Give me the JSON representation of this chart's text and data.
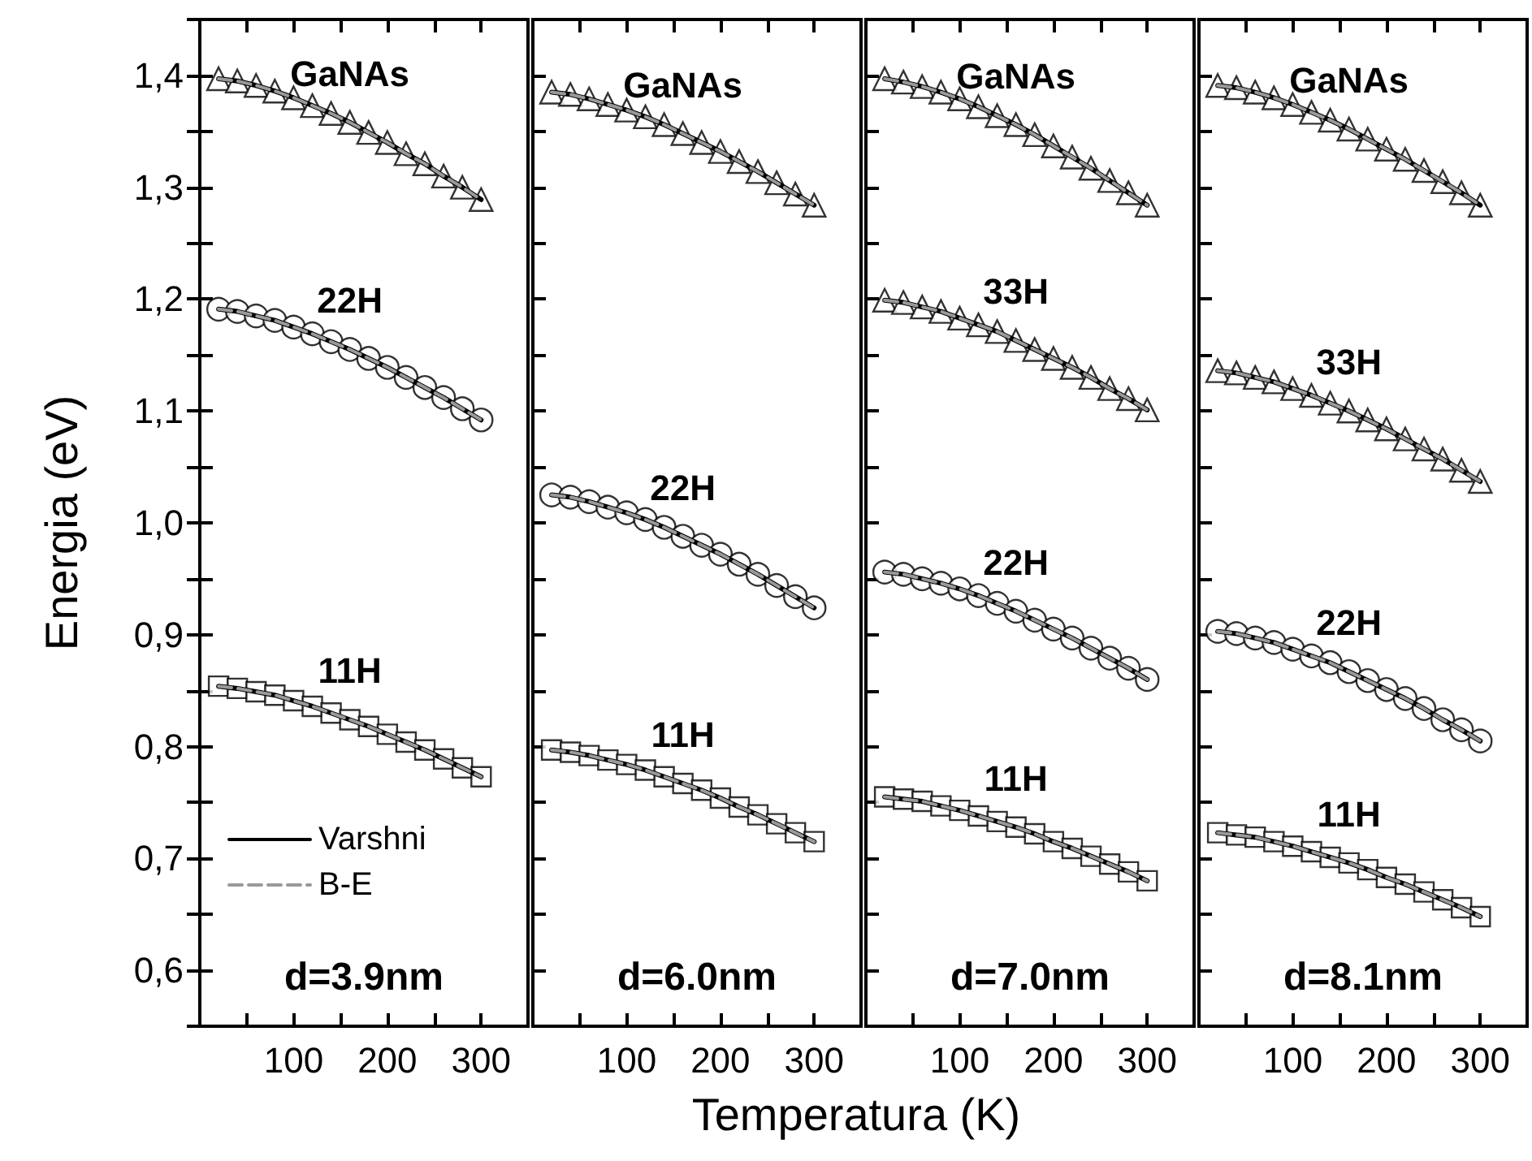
{
  "chart_data": [
    {
      "type": "scatter",
      "title": "d=3.9nm",
      "xlabel": "Temperatura (K)",
      "ylabel": "Energia (eV)",
      "legend": "bottom left",
      "xlim": [
        0,
        350
      ],
      "ylim": [
        0.55,
        1.45
      ],
      "xticks": [
        100,
        200,
        300
      ],
      "yticks": [
        {
          "value": 0.6,
          "label": "0,6"
        },
        {
          "value": 0.7,
          "label": "0,7"
        },
        {
          "value": 0.8,
          "label": "0,8"
        },
        {
          "value": 0.9,
          "label": "0,9"
        },
        {
          "value": 1.0,
          "label": "1,0"
        },
        {
          "value": 1.1,
          "label": "1,1"
        },
        {
          "value": 1.2,
          "label": "1,2"
        },
        {
          "value": 1.3,
          "label": "1,3"
        },
        {
          "value": 1.4,
          "label": "1,4"
        }
      ],
      "x": [
        20,
        40,
        60,
        80,
        100,
        120,
        140,
        160,
        180,
        200,
        220,
        240,
        260,
        280,
        300
      ],
      "series": [
        {
          "name": "GaNAs",
          "marker": "triangle",
          "color": "#000000",
          "values": [
            1.397,
            1.395,
            1.391,
            1.386,
            1.38,
            1.373,
            1.366,
            1.358,
            1.349,
            1.34,
            1.33,
            1.321,
            1.31,
            1.3,
            1.289
          ]
        },
        {
          "name": "22H",
          "marker": "circle",
          "color": "#000000",
          "values": [
            1.191,
            1.189,
            1.185,
            1.181,
            1.175,
            1.169,
            1.162,
            1.155,
            1.147,
            1.139,
            1.13,
            1.121,
            1.112,
            1.102,
            1.092
          ]
        },
        {
          "name": "11H",
          "marker": "square",
          "color": "#000000",
          "values": [
            0.854,
            0.852,
            0.849,
            0.846,
            0.841,
            0.836,
            0.83,
            0.824,
            0.818,
            0.811,
            0.804,
            0.797,
            0.789,
            0.781,
            0.773
          ]
        },
        {
          "type": "line",
          "name": "Varshni",
          "color": "#000000",
          "line_style": "solid",
          "marker": "none",
          "values": [
            1.397,
            1.395,
            1.391,
            1.386,
            1.38,
            1.373,
            1.366,
            1.358,
            1.349,
            1.34,
            1.33,
            1.321,
            1.31,
            1.3,
            1.289
          ]
        },
        {
          "type": "line",
          "name": "B-E",
          "color": "#999999",
          "line_style": "dashed",
          "marker": "none",
          "values": [
            1.397,
            1.395,
            1.391,
            1.386,
            1.38,
            1.373,
            1.366,
            1.358,
            1.349,
            1.34,
            1.33,
            1.321,
            1.31,
            1.3,
            1.289
          ]
        },
        {
          "type": "line",
          "color": "#000000",
          "line_style": "solid",
          "marker": "none",
          "values": [
            1.191,
            1.189,
            1.185,
            1.181,
            1.175,
            1.169,
            1.162,
            1.155,
            1.147,
            1.139,
            1.13,
            1.121,
            1.112,
            1.102,
            1.092
          ]
        },
        {
          "type": "line",
          "color": "#999999",
          "line_style": "dashed",
          "marker": "none",
          "values": [
            1.191,
            1.189,
            1.185,
            1.181,
            1.175,
            1.169,
            1.162,
            1.155,
            1.147,
            1.139,
            1.13,
            1.121,
            1.112,
            1.102,
            1.092
          ]
        },
        {
          "type": "line",
          "color": "#000000",
          "line_style": "solid",
          "marker": "none",
          "values": [
            0.854,
            0.852,
            0.849,
            0.846,
            0.841,
            0.836,
            0.83,
            0.824,
            0.818,
            0.811,
            0.804,
            0.797,
            0.789,
            0.781,
            0.773
          ]
        },
        {
          "type": "line",
          "color": "#999999",
          "line_style": "dashed",
          "marker": "none",
          "values": [
            0.854,
            0.852,
            0.849,
            0.846,
            0.841,
            0.836,
            0.83,
            0.824,
            0.818,
            0.811,
            0.804,
            0.797,
            0.789,
            0.781,
            0.773
          ]
        }
      ]
    },
    {
      "type": "scatter",
      "title": "d=6.0nm",
      "tick_labels": "x",
      "xlim": [
        0,
        350
      ],
      "ylim": [
        0.55,
        1.45
      ],
      "xticks": [
        100,
        200,
        300
      ],
      "yticks": [
        {
          "value": 0.6,
          "label": null
        },
        {
          "value": 0.7,
          "label": null
        },
        {
          "value": 0.8,
          "label": null
        },
        {
          "value": 0.9,
          "label": null
        },
        {
          "value": 1.0,
          "label": null
        },
        {
          "value": 1.1,
          "label": null
        },
        {
          "value": 1.2,
          "label": null
        },
        {
          "value": 1.3,
          "label": null
        },
        {
          "value": 1.4,
          "label": null
        }
      ],
      "x": [
        20,
        40,
        60,
        80,
        100,
        120,
        140,
        160,
        180,
        200,
        220,
        240,
        260,
        280,
        300
      ],
      "series": [
        {
          "name": "GaNAs",
          "marker": "triangle",
          "color": "#000000",
          "values": [
            1.385,
            1.383,
            1.379,
            1.374,
            1.369,
            1.363,
            1.356,
            1.348,
            1.34,
            1.332,
            1.323,
            1.314,
            1.304,
            1.294,
            1.284
          ]
        },
        {
          "name": "22H",
          "marker": "circle",
          "color": "#000000",
          "values": [
            1.025,
            1.023,
            1.019,
            1.014,
            1.009,
            1.003,
            0.996,
            0.988,
            0.98,
            0.972,
            0.963,
            0.954,
            0.944,
            0.934,
            0.924
          ]
        },
        {
          "name": "11H",
          "marker": "square",
          "color": "#000000",
          "values": [
            0.797,
            0.795,
            0.792,
            0.788,
            0.784,
            0.779,
            0.773,
            0.767,
            0.761,
            0.754,
            0.746,
            0.739,
            0.731,
            0.723,
            0.715
          ]
        },
        {
          "type": "line",
          "color": "#000000",
          "line_style": "solid",
          "marker": "none",
          "values": [
            1.385,
            1.383,
            1.379,
            1.374,
            1.369,
            1.363,
            1.356,
            1.348,
            1.34,
            1.332,
            1.323,
            1.314,
            1.304,
            1.294,
            1.284
          ]
        },
        {
          "type": "line",
          "color": "#999999",
          "line_style": "dashed",
          "marker": "none",
          "values": [
            1.385,
            1.383,
            1.379,
            1.374,
            1.369,
            1.363,
            1.356,
            1.348,
            1.34,
            1.332,
            1.323,
            1.314,
            1.304,
            1.294,
            1.284
          ]
        },
        {
          "type": "line",
          "color": "#000000",
          "line_style": "solid",
          "marker": "none",
          "values": [
            1.025,
            1.023,
            1.019,
            1.014,
            1.009,
            1.003,
            0.996,
            0.988,
            0.98,
            0.972,
            0.963,
            0.954,
            0.944,
            0.934,
            0.924
          ]
        },
        {
          "type": "line",
          "color": "#999999",
          "line_style": "dashed",
          "marker": "none",
          "values": [
            1.025,
            1.023,
            1.019,
            1.014,
            1.009,
            1.003,
            0.996,
            0.988,
            0.98,
            0.972,
            0.963,
            0.954,
            0.944,
            0.934,
            0.924
          ]
        },
        {
          "type": "line",
          "color": "#000000",
          "line_style": "solid",
          "marker": "none",
          "values": [
            0.797,
            0.795,
            0.792,
            0.788,
            0.784,
            0.779,
            0.773,
            0.767,
            0.761,
            0.754,
            0.746,
            0.739,
            0.731,
            0.723,
            0.715
          ]
        },
        {
          "type": "line",
          "color": "#999999",
          "line_style": "dashed",
          "marker": "none",
          "values": [
            0.797,
            0.795,
            0.792,
            0.788,
            0.784,
            0.779,
            0.773,
            0.767,
            0.761,
            0.754,
            0.746,
            0.739,
            0.731,
            0.723,
            0.715
          ]
        }
      ]
    },
    {
      "type": "scatter",
      "title": "d=7.0nm",
      "tick_labels": "x",
      "xlim": [
        0,
        350
      ],
      "ylim": [
        0.55,
        1.45
      ],
      "xticks": [
        100,
        200,
        300
      ],
      "yticks": [
        {
          "value": 0.6,
          "label": null
        },
        {
          "value": 0.7,
          "label": null
        },
        {
          "value": 0.8,
          "label": null
        },
        {
          "value": 0.9,
          "label": null
        },
        {
          "value": 1.0,
          "label": null
        },
        {
          "value": 1.1,
          "label": null
        },
        {
          "value": 1.2,
          "label": null
        },
        {
          "value": 1.3,
          "label": null
        },
        {
          "value": 1.4,
          "label": null
        }
      ],
      "x": [
        20,
        40,
        60,
        80,
        100,
        120,
        140,
        160,
        180,
        200,
        220,
        240,
        260,
        280,
        300
      ],
      "series": [
        {
          "name": "GaNAs",
          "marker": "triangle",
          "color": "#000000",
          "values": [
            1.397,
            1.394,
            1.39,
            1.385,
            1.379,
            1.372,
            1.364,
            1.356,
            1.347,
            1.337,
            1.327,
            1.317,
            1.306,
            1.295,
            1.284
          ]
        },
        {
          "name": "33H",
          "marker": "triangle",
          "color": "#000000",
          "values": [
            1.199,
            1.197,
            1.193,
            1.189,
            1.183,
            1.177,
            1.171,
            1.163,
            1.155,
            1.147,
            1.139,
            1.13,
            1.12,
            1.111,
            1.101
          ]
        },
        {
          "name": "22H",
          "marker": "circle",
          "color": "#000000",
          "values": [
            0.956,
            0.954,
            0.95,
            0.946,
            0.941,
            0.935,
            0.928,
            0.921,
            0.913,
            0.905,
            0.897,
            0.888,
            0.879,
            0.87,
            0.86
          ]
        },
        {
          "name": "11H",
          "marker": "square",
          "color": "#000000",
          "values": [
            0.755,
            0.753,
            0.751,
            0.747,
            0.743,
            0.738,
            0.733,
            0.728,
            0.722,
            0.715,
            0.709,
            0.702,
            0.695,
            0.688,
            0.68
          ]
        },
        {
          "type": "line",
          "color": "#000000",
          "line_style": "solid",
          "marker": "none",
          "values": [
            1.397,
            1.394,
            1.39,
            1.385,
            1.379,
            1.372,
            1.364,
            1.356,
            1.347,
            1.337,
            1.327,
            1.317,
            1.306,
            1.295,
            1.284
          ]
        },
        {
          "type": "line",
          "color": "#999999",
          "line_style": "dashed",
          "marker": "none",
          "values": [
            1.397,
            1.394,
            1.39,
            1.385,
            1.379,
            1.372,
            1.364,
            1.356,
            1.347,
            1.337,
            1.327,
            1.317,
            1.306,
            1.295,
            1.284
          ]
        },
        {
          "type": "line",
          "color": "#000000",
          "line_style": "solid",
          "marker": "none",
          "values": [
            1.199,
            1.197,
            1.193,
            1.189,
            1.183,
            1.177,
            1.171,
            1.163,
            1.155,
            1.147,
            1.139,
            1.13,
            1.12,
            1.111,
            1.101
          ]
        },
        {
          "type": "line",
          "color": "#999999",
          "line_style": "dashed",
          "marker": "none",
          "values": [
            1.199,
            1.197,
            1.193,
            1.189,
            1.183,
            1.177,
            1.171,
            1.163,
            1.155,
            1.147,
            1.139,
            1.13,
            1.12,
            1.111,
            1.101
          ]
        },
        {
          "type": "line",
          "color": "#000000",
          "line_style": "solid",
          "marker": "none",
          "values": [
            0.956,
            0.954,
            0.95,
            0.946,
            0.941,
            0.935,
            0.928,
            0.921,
            0.913,
            0.905,
            0.897,
            0.888,
            0.879,
            0.87,
            0.86
          ]
        },
        {
          "type": "line",
          "color": "#999999",
          "line_style": "dashed",
          "marker": "none",
          "values": [
            0.956,
            0.954,
            0.95,
            0.946,
            0.941,
            0.935,
            0.928,
            0.921,
            0.913,
            0.905,
            0.897,
            0.888,
            0.879,
            0.87,
            0.86
          ]
        },
        {
          "type": "line",
          "color": "#000000",
          "line_style": "solid",
          "marker": "none",
          "values": [
            0.755,
            0.753,
            0.751,
            0.747,
            0.743,
            0.738,
            0.733,
            0.728,
            0.722,
            0.715,
            0.709,
            0.702,
            0.695,
            0.688,
            0.68
          ]
        },
        {
          "type": "line",
          "color": "#999999",
          "line_style": "dashed",
          "marker": "none",
          "values": [
            0.755,
            0.753,
            0.751,
            0.747,
            0.743,
            0.738,
            0.733,
            0.728,
            0.722,
            0.715,
            0.709,
            0.702,
            0.695,
            0.688,
            0.68
          ]
        }
      ]
    },
    {
      "type": "scatter",
      "title": "d=8.1nm",
      "tick_labels": "x",
      "xlim": [
        0,
        350
      ],
      "ylim": [
        0.55,
        1.45
      ],
      "xticks": [
        100,
        200,
        300
      ],
      "yticks": [
        {
          "value": 0.6,
          "label": null
        },
        {
          "value": 0.7,
          "label": null
        },
        {
          "value": 0.8,
          "label": null
        },
        {
          "value": 0.9,
          "label": null
        },
        {
          "value": 1.0,
          "label": null
        },
        {
          "value": 1.1,
          "label": null
        },
        {
          "value": 1.2,
          "label": null
        },
        {
          "value": 1.3,
          "label": null
        },
        {
          "value": 1.4,
          "label": null
        }
      ],
      "x": [
        20,
        40,
        60,
        80,
        100,
        120,
        140,
        160,
        180,
        200,
        220,
        240,
        260,
        280,
        300
      ],
      "series": [
        {
          "name": "GaNAs",
          "marker": "triangle",
          "color": "#000000",
          "values": [
            1.391,
            1.389,
            1.385,
            1.38,
            1.374,
            1.367,
            1.36,
            1.352,
            1.343,
            1.334,
            1.325,
            1.315,
            1.305,
            1.295,
            1.284
          ]
        },
        {
          "name": "33H",
          "marker": "triangle",
          "color": "#000000",
          "values": [
            1.136,
            1.134,
            1.13,
            1.126,
            1.12,
            1.114,
            1.107,
            1.1,
            1.092,
            1.084,
            1.075,
            1.066,
            1.057,
            1.047,
            1.037
          ]
        },
        {
          "name": "22H",
          "marker": "circle",
          "color": "#000000",
          "values": [
            0.903,
            0.901,
            0.897,
            0.893,
            0.887,
            0.881,
            0.875,
            0.867,
            0.859,
            0.851,
            0.843,
            0.834,
            0.824,
            0.815,
            0.805
          ]
        },
        {
          "name": "11H",
          "marker": "square",
          "color": "#000000",
          "values": [
            0.723,
            0.721,
            0.719,
            0.715,
            0.711,
            0.706,
            0.701,
            0.696,
            0.69,
            0.683,
            0.677,
            0.67,
            0.663,
            0.656,
            0.648
          ]
        },
        {
          "type": "line",
          "color": "#000000",
          "line_style": "solid",
          "marker": "none",
          "values": [
            1.391,
            1.389,
            1.385,
            1.38,
            1.374,
            1.367,
            1.36,
            1.352,
            1.343,
            1.334,
            1.325,
            1.315,
            1.305,
            1.295,
            1.284
          ]
        },
        {
          "type": "line",
          "color": "#999999",
          "line_style": "dashed",
          "marker": "none",
          "values": [
            1.391,
            1.389,
            1.385,
            1.38,
            1.374,
            1.367,
            1.36,
            1.352,
            1.343,
            1.334,
            1.325,
            1.315,
            1.305,
            1.295,
            1.284
          ]
        },
        {
          "type": "line",
          "color": "#000000",
          "line_style": "solid",
          "marker": "none",
          "values": [
            1.136,
            1.134,
            1.13,
            1.126,
            1.12,
            1.114,
            1.107,
            1.1,
            1.092,
            1.084,
            1.075,
            1.066,
            1.057,
            1.047,
            1.037
          ]
        },
        {
          "type": "line",
          "color": "#999999",
          "line_style": "dashed",
          "marker": "none",
          "values": [
            1.136,
            1.134,
            1.13,
            1.126,
            1.12,
            1.114,
            1.107,
            1.1,
            1.092,
            1.084,
            1.075,
            1.066,
            1.057,
            1.047,
            1.037
          ]
        },
        {
          "type": "line",
          "color": "#000000",
          "line_style": "solid",
          "marker": "none",
          "values": [
            0.903,
            0.901,
            0.897,
            0.893,
            0.887,
            0.881,
            0.875,
            0.867,
            0.859,
            0.851,
            0.843,
            0.834,
            0.824,
            0.815,
            0.805
          ]
        },
        {
          "type": "line",
          "color": "#999999",
          "line_style": "dashed",
          "marker": "none",
          "values": [
            0.903,
            0.901,
            0.897,
            0.893,
            0.887,
            0.881,
            0.875,
            0.867,
            0.859,
            0.851,
            0.843,
            0.834,
            0.824,
            0.815,
            0.805
          ]
        },
        {
          "type": "line",
          "color": "#000000",
          "line_style": "solid",
          "marker": "none",
          "values": [
            0.723,
            0.721,
            0.719,
            0.715,
            0.711,
            0.706,
            0.701,
            0.696,
            0.69,
            0.683,
            0.677,
            0.67,
            0.663,
            0.656,
            0.648
          ]
        },
        {
          "type": "line",
          "color": "#999999",
          "line_style": "dashed",
          "marker": "none",
          "values": [
            0.723,
            0.721,
            0.719,
            0.715,
            0.711,
            0.706,
            0.701,
            0.696,
            0.69,
            0.683,
            0.677,
            0.67,
            0.663,
            0.656,
            0.648
          ]
        }
      ]
    }
  ]
}
